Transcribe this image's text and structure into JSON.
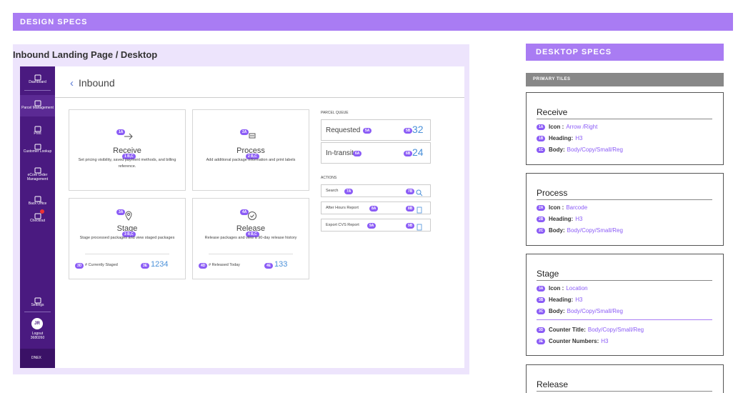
{
  "header": {
    "title": "DESIGN SPECS"
  },
  "mockup": {
    "title": "Inbound Landing Page / Desktop",
    "sidebar": {
      "items": [
        "Dashboard",
        "Parcel Management",
        "Print",
        "Customer Lookup",
        "eCore Order Management",
        "Back Office",
        "Checkout",
        "Settings"
      ],
      "user": {
        "initials": "JR",
        "action": "Logout",
        "id": "3680260"
      },
      "footer": "DNEX"
    },
    "page_title": "Inbound",
    "tiles": [
      {
        "icon_badge": "1A",
        "heading": "Receive",
        "heading_badge": "1 B,C",
        "body": "Set pricing visibility, saved payment methods, and billing reference."
      },
      {
        "icon_badge": "2A",
        "heading": "Process",
        "heading_badge": "2 B,C",
        "body": "Add additional package information and print labels"
      },
      {
        "icon_badge": "3A",
        "heading": "Stage",
        "heading_badge": "3 B,C",
        "body": "Stage processed packages and view staged packages",
        "counter_title_badge": "3D",
        "counter_title": "# Currently Staged",
        "counter_badge": "3E",
        "counter": "1234"
      },
      {
        "icon_badge": "4A",
        "heading": "Release",
        "heading_badge": "4 B,C",
        "body": "Release packages and view a 90-day release history",
        "counter_title_badge": "4D",
        "counter_title": "# Released Today",
        "counter_badge": "4E",
        "counter": "133"
      }
    ],
    "queue": {
      "title": "PARCEL QUEUE",
      "items": [
        {
          "label": "Requested",
          "label_badge": "5A",
          "count_badge": "5B",
          "count": "32"
        },
        {
          "label": "In-transit",
          "label_badge": "6A",
          "count_badge": "6B",
          "count": "24"
        }
      ]
    },
    "actions": {
      "title": "ACTIONS",
      "items": [
        {
          "label": "Search",
          "label_badge": "7A",
          "icon_badge": "7B"
        },
        {
          "label": "After Hours Report",
          "label_badge": "8A",
          "icon_badge": "8B"
        },
        {
          "label": "Export CVS Report",
          "label_badge": "9A",
          "icon_badge": "9B"
        }
      ]
    }
  },
  "specs": {
    "title": "DESKTOP SPECS",
    "section": "PRIMARY TILES",
    "cards": [
      {
        "heading": "Receive",
        "rows": [
          {
            "badge": "1A",
            "label": "Icon :",
            "value": "Arrow /Right"
          },
          {
            "badge": "1B",
            "label": "Heading:",
            "value": "H3"
          },
          {
            "badge": "1C",
            "label": "Body:",
            "value": "Body/Copy/Small/Reg"
          }
        ]
      },
      {
        "heading": "Process",
        "rows": [
          {
            "badge": "2A",
            "label": "Icon :",
            "value": "Barcode"
          },
          {
            "badge": "2B",
            "label": "Heading:",
            "value": "H3"
          },
          {
            "badge": "2C",
            "label": "Body:",
            "value": "Body/Copy/Small/Reg"
          }
        ]
      },
      {
        "heading": "Stage",
        "rows": [
          {
            "badge": "3A",
            "label": "Icon :",
            "value": "Location"
          },
          {
            "badge": "3B",
            "label": "Heading:",
            "value": "H3"
          },
          {
            "badge": "3C",
            "label": "Body:",
            "value": "Body/Copy/Small/Reg"
          },
          {
            "badge": "3D",
            "label": "Counter Title:",
            "value": "Body/Copy/Small/Reg"
          },
          {
            "badge": "3E",
            "label": "Counter Numbers:",
            "value": "H3"
          }
        ]
      },
      {
        "heading": "Release",
        "rows": []
      }
    ]
  }
}
